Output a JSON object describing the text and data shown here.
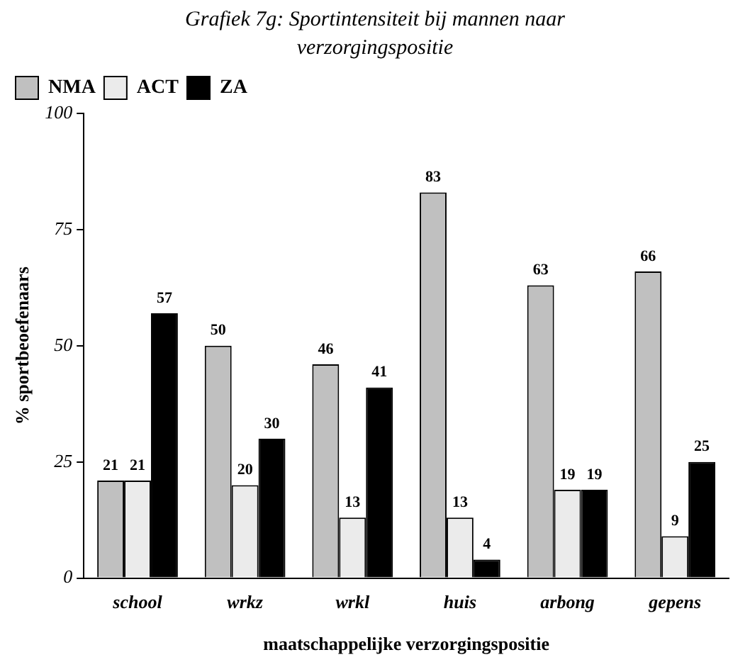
{
  "chart_data": {
    "type": "bar",
    "title": "Grafiek 7g: Sportintensiteit bij mannen naar verzorgingspositie",
    "xlabel": "maatschappelijke verzorgingspositie",
    "ylabel": "% sportbeoefenaars",
    "categories": [
      "school",
      "wrkz",
      "wrkl",
      "huis",
      "arbong",
      "gepens"
    ],
    "series": [
      {
        "name": "NMA",
        "color": "#c0c0c0",
        "values": [
          21,
          50,
          46,
          83,
          63,
          66
        ]
      },
      {
        "name": "ACT",
        "color": "#ebebeb",
        "values": [
          21,
          20,
          13,
          13,
          19,
          9
        ]
      },
      {
        "name": "ZA",
        "color": "#000000",
        "values": [
          57,
          30,
          41,
          4,
          19,
          25
        ]
      }
    ],
    "ylim": [
      0,
      100
    ],
    "yticks": [
      0,
      25,
      50,
      75,
      100
    ],
    "grid": false,
    "legend": "top left",
    "data_labels": true
  }
}
